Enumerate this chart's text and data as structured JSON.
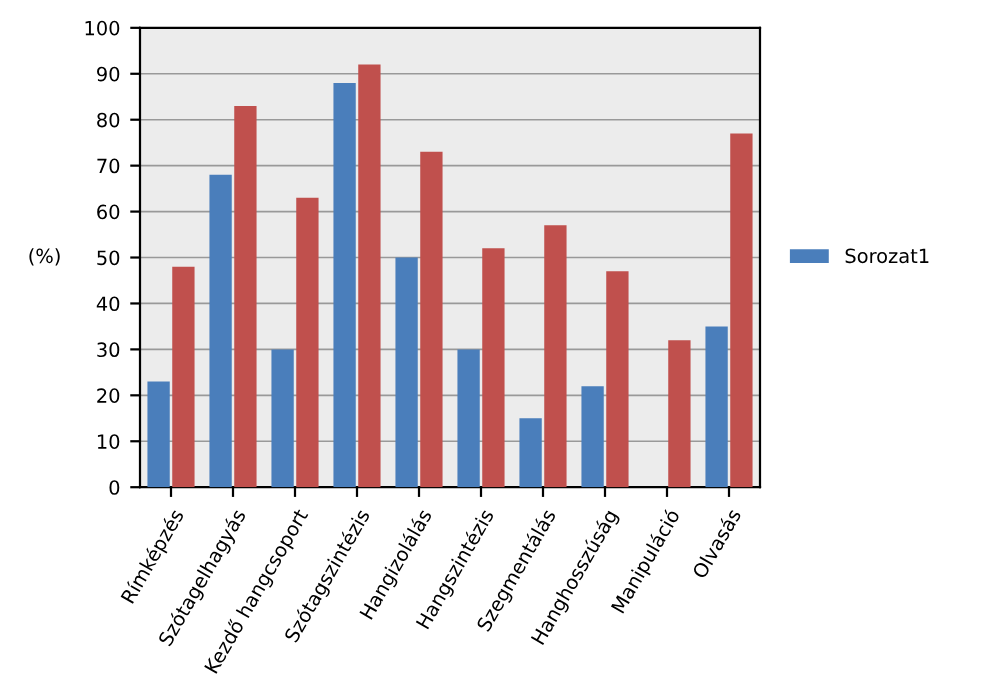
{
  "chart_data": {
    "type": "bar",
    "ylabel": "(%)",
    "categories": [
      "Rímképzés",
      "Szótagelhagyás",
      "Kezdő hangcsoport",
      "Szótagszintézis",
      "Hangizolálás",
      "Hangszintézis",
      "Szegmentálás",
      "Hanghosszúság",
      "Manipuláció",
      "Olvasás"
    ],
    "series": [
      {
        "name": "Sorozat1",
        "color": "#4a7ebb",
        "values": [
          23,
          68,
          30,
          88,
          50,
          30,
          15,
          22,
          0,
          35
        ]
      },
      {
        "color": "#c0504d",
        "values": [
          48,
          83,
          63,
          92,
          73,
          52,
          57,
          47,
          32,
          77
        ]
      }
    ],
    "ylim": [
      0,
      100
    ],
    "yticks": [
      0,
      10,
      20,
      30,
      40,
      50,
      60,
      70,
      80,
      90,
      100
    ],
    "grid": "y",
    "legend": "right"
  }
}
